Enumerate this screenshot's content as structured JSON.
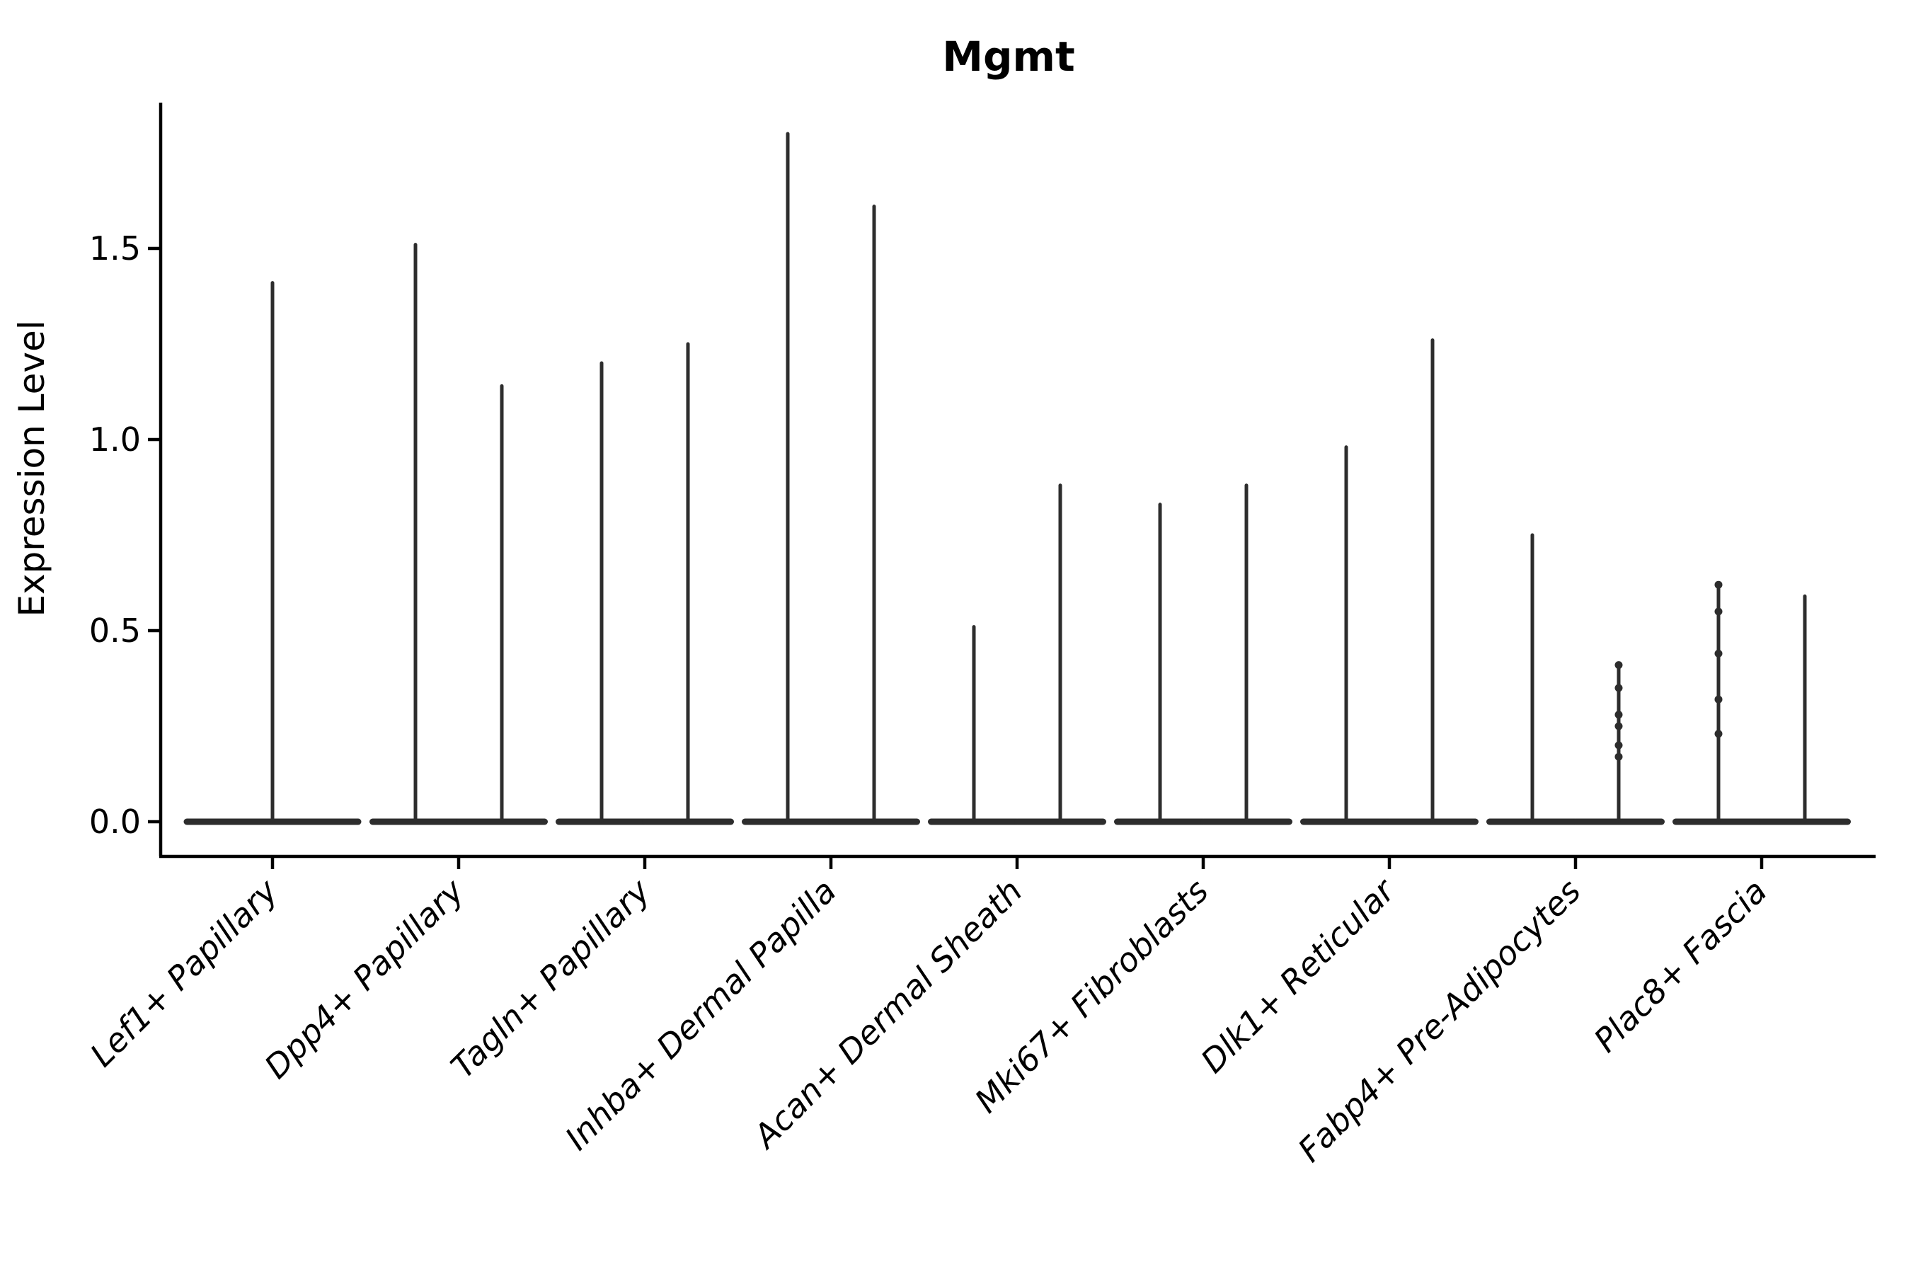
{
  "title": "Mgmt",
  "ylabel": "Expression Level",
  "colors": {
    "violin": "#2d2d2d",
    "axis": "#000000",
    "text": "#000000",
    "background": "#ffffff"
  },
  "chart_data": {
    "type": "violin",
    "title": "Mgmt",
    "xlabel": "",
    "ylabel": "Expression Level",
    "ylim": [
      0,
      1.88
    ],
    "yticks": [
      "0.0",
      "0.5",
      "1.0",
      "1.5"
    ],
    "ytick_values": [
      0.0,
      0.5,
      1.0,
      1.5
    ],
    "grid": false,
    "legend": "none",
    "description": "Violin plot of Mgmt expression; each violin is a wide flat disc at 0 with a very thin tail (spike) rising to the maximum expression value. Most categories contain two violins side by side; the first category has a single centered violin.",
    "categories": [
      "Lef1+ Papillary",
      "Dpp4+ Papillary",
      "Tagln+ Papillary",
      "Inhba+ Dermal Papilla",
      "Acan+ Dermal Sheath",
      "Mki67+ Fibroblasts",
      "Dlk1+ Reticular",
      "Fabp4+ Pre-Adipocytes",
      "Plac8+ Fascia"
    ],
    "series": [
      {
        "category": "Lef1+ Papillary",
        "violins": [
          {
            "min": 0,
            "max": 1.41
          }
        ]
      },
      {
        "category": "Dpp4+ Papillary",
        "violins": [
          {
            "min": 0,
            "max": 1.51
          },
          {
            "min": 0,
            "max": 1.14
          }
        ]
      },
      {
        "category": "Tagln+ Papillary",
        "violins": [
          {
            "min": 0,
            "max": 1.2
          },
          {
            "min": 0,
            "max": 1.25
          }
        ]
      },
      {
        "category": "Inhba+ Dermal Papilla",
        "violins": [
          {
            "min": 0,
            "max": 1.8
          },
          {
            "min": 0,
            "max": 1.61
          }
        ]
      },
      {
        "category": "Acan+ Dermal Sheath",
        "violins": [
          {
            "min": 0,
            "max": 0.51
          },
          {
            "min": 0,
            "max": 0.88
          }
        ]
      },
      {
        "category": "Mki67+ Fibroblasts",
        "violins": [
          {
            "min": 0,
            "max": 0.83
          },
          {
            "min": 0,
            "max": 0.88
          }
        ]
      },
      {
        "category": "Dlk1+ Reticular",
        "violins": [
          {
            "min": 0,
            "max": 0.98
          },
          {
            "min": 0,
            "max": 1.26
          }
        ]
      },
      {
        "category": "Fabp4+ Pre-Adipocytes",
        "violins": [
          {
            "min": 0,
            "max": 0.75
          },
          {
            "min": 0,
            "max": 0.41,
            "points": [
              0.41,
              0.35,
              0.28,
              0.25,
              0.2,
              0.17
            ]
          }
        ]
      },
      {
        "category": "Plac8+ Fascia",
        "violins": [
          {
            "min": 0,
            "max": 0.62,
            "points": [
              0.62,
              0.55,
              0.44,
              0.32,
              0.23
            ]
          },
          {
            "min": 0,
            "max": 0.59
          }
        ]
      }
    ]
  }
}
